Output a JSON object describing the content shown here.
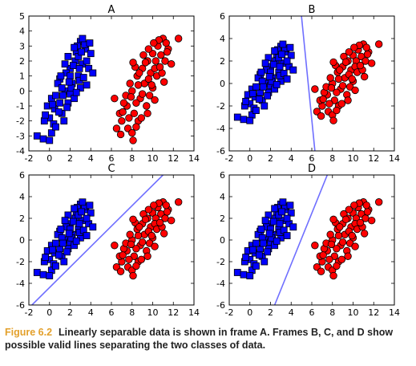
{
  "caption": {
    "label": "Figure 6.2",
    "text": "Linearly separable data is shown in frame A. Frames B, C, and D show possible valid lines separating the two classes of data.",
    "label_color": "#e3a02b"
  },
  "colors": {
    "class1": "#0000ff",
    "class2": "#ff0000",
    "line": "#6f6fff",
    "edge": "#000000"
  },
  "chart_data": [
    {
      "type": "scatter",
      "title": "A",
      "xlim": [
        -2,
        14
      ],
      "ylim": [
        -4,
        5
      ],
      "xticks": [
        "-2",
        "0",
        "2",
        "4",
        "6",
        "8",
        "10",
        "12",
        "14"
      ],
      "yticks": [
        "-4",
        "-3",
        "-2",
        "-1",
        "0",
        "1",
        "2",
        "3",
        "4",
        "5"
      ],
      "xtick_values": [
        -2,
        0,
        2,
        4,
        6,
        8,
        10,
        12,
        14
      ],
      "ytick_values": [
        -4,
        -3,
        -2,
        -1,
        0,
        1,
        2,
        3,
        4,
        5
      ],
      "line": null
    },
    {
      "type": "scatter",
      "title": "B",
      "xlim": [
        -2,
        14
      ],
      "ylim": [
        -6,
        6
      ],
      "xticks": [
        "-2",
        "0",
        "2",
        "4",
        "6",
        "8",
        "10",
        "12",
        "14"
      ],
      "yticks": [
        "-6",
        "-4",
        "-2",
        "0",
        "2",
        "4",
        "6"
      ],
      "xtick_values": [
        -2,
        0,
        2,
        4,
        6,
        8,
        10,
        12,
        14
      ],
      "ytick_values": [
        -6,
        -4,
        -2,
        0,
        2,
        4,
        6
      ],
      "line": [
        [
          5.0,
          6.0
        ],
        [
          6.3,
          -6.0
        ]
      ]
    },
    {
      "type": "scatter",
      "title": "C",
      "xlim": [
        -2,
        14
      ],
      "ylim": [
        -6,
        6
      ],
      "xticks": [
        "-2",
        "0",
        "2",
        "4",
        "6",
        "8",
        "10",
        "12",
        "14"
      ],
      "yticks": [
        "-6",
        "-4",
        "-2",
        "0",
        "2",
        "4",
        "6"
      ],
      "xtick_values": [
        -2,
        0,
        2,
        4,
        6,
        8,
        10,
        12,
        14
      ],
      "ytick_values": [
        -6,
        -4,
        -2,
        0,
        2,
        4,
        6
      ],
      "line": [
        [
          -1.7,
          -6.0
        ],
        [
          11.0,
          6.0
        ]
      ]
    },
    {
      "type": "scatter",
      "title": "D",
      "xlim": [
        -2,
        14
      ],
      "ylim": [
        -6,
        6
      ],
      "xticks": [
        "-2",
        "0",
        "2",
        "4",
        "6",
        "8",
        "10",
        "12",
        "14"
      ],
      "yticks": [
        "-6",
        "-4",
        "-2",
        "0",
        "2",
        "4",
        "6"
      ],
      "xtick_values": [
        -2,
        0,
        2,
        4,
        6,
        8,
        10,
        12,
        14
      ],
      "ytick_values": [
        -6,
        -4,
        -2,
        0,
        2,
        4,
        6
      ],
      "line": [
        [
          2.4,
          -6.0
        ],
        [
          7.5,
          6.0
        ]
      ]
    }
  ],
  "points": {
    "class1": [
      [
        0.2,
        -0.5
      ],
      [
        1.0,
        0.8
      ],
      [
        2.0,
        1.5
      ],
      [
        1.5,
        0.0
      ],
      [
        0.5,
        -1.2
      ],
      [
        2.5,
        2.0
      ],
      [
        3.0,
        3.3
      ],
      [
        3.5,
        2.8
      ],
      [
        2.8,
        1.0
      ],
      [
        1.8,
        -0.8
      ],
      [
        0.0,
        -1.8
      ],
      [
        -0.5,
        -2.0
      ],
      [
        1.2,
        -1.5
      ],
      [
        2.2,
        0.5
      ],
      [
        3.2,
        1.8
      ],
      [
        3.8,
        1.5
      ],
      [
        4.0,
        2.5
      ],
      [
        3.0,
        0.2
      ],
      [
        2.0,
        -0.2
      ],
      [
        1.0,
        -0.8
      ],
      [
        0.8,
        0.5
      ],
      [
        1.6,
        1.2
      ],
      [
        2.6,
        2.6
      ],
      [
        3.4,
        3.1
      ],
      [
        2.4,
        -0.5
      ],
      [
        1.4,
        -2.0
      ],
      [
        0.4,
        -2.2
      ],
      [
        -0.2,
        -1.0
      ],
      [
        -1.2,
        -3.0
      ],
      [
        -0.6,
        -3.2
      ],
      [
        0.2,
        -2.8
      ],
      [
        0.0,
        -3.3
      ],
      [
        1.8,
        2.3
      ],
      [
        2.8,
        2.3
      ],
      [
        3.6,
        2.0
      ],
      [
        4.2,
        1.2
      ],
      [
        2.0,
        1.0
      ],
      [
        1.2,
        0.2
      ],
      [
        0.6,
        -0.3
      ],
      [
        1.7,
        -1.1
      ],
      [
        2.9,
        0.7
      ],
      [
        3.3,
        0.9
      ],
      [
        2.3,
        1.7
      ],
      [
        1.5,
        1.8
      ],
      [
        2.7,
        3.0
      ],
      [
        3.9,
        3.2
      ],
      [
        3.1,
        2.6
      ],
      [
        0.9,
        -1.4
      ],
      [
        -0.4,
        -1.6
      ],
      [
        0.3,
        -0.9
      ],
      [
        2.1,
        0.2
      ],
      [
        1.1,
        1.0
      ],
      [
        2.4,
        2.9
      ],
      [
        3.6,
        0.4
      ],
      [
        1.9,
        0.6
      ],
      [
        2.9,
        1.5
      ],
      [
        1.3,
        -0.3
      ],
      [
        2.6,
        -0.1
      ],
      [
        0.6,
        -2.4
      ],
      [
        3.2,
        3.5
      ]
    ],
    "class2": [
      [
        8.0,
        0.0
      ],
      [
        8.5,
        1.0
      ],
      [
        9.0,
        1.5
      ],
      [
        9.5,
        2.0
      ],
      [
        10.0,
        2.5
      ],
      [
        10.5,
        3.0
      ],
      [
        11.0,
        3.5
      ],
      [
        7.5,
        -1.0
      ],
      [
        7.0,
        -2.0
      ],
      [
        6.5,
        -2.5
      ],
      [
        8.2,
        -1.5
      ],
      [
        8.8,
        -0.5
      ],
      [
        9.2,
        0.5
      ],
      [
        9.8,
        1.2
      ],
      [
        10.3,
        2.0
      ],
      [
        10.8,
        2.4
      ],
      [
        11.5,
        2.8
      ],
      [
        12.5,
        3.5
      ],
      [
        7.8,
        0.5
      ],
      [
        8.4,
        -0.8
      ],
      [
        9.0,
        -0.2
      ],
      [
        9.6,
        0.8
      ],
      [
        10.2,
        1.5
      ],
      [
        10.6,
        3.4
      ],
      [
        7.2,
        -0.8
      ],
      [
        6.8,
        -1.5
      ],
      [
        7.6,
        -2.5
      ],
      [
        8.0,
        -2.8
      ],
      [
        8.6,
        -2.0
      ],
      [
        9.4,
        -1.0
      ],
      [
        10.0,
        0.2
      ],
      [
        10.4,
        1.0
      ],
      [
        11.2,
        2.0
      ],
      [
        11.8,
        1.8
      ],
      [
        9.1,
        2.4
      ],
      [
        8.3,
        1.6
      ],
      [
        7.4,
        -0.3
      ],
      [
        6.3,
        -0.5
      ],
      [
        8.9,
        -1.8
      ],
      [
        9.7,
        -0.3
      ],
      [
        10.9,
        1.2
      ],
      [
        11.4,
        2.6
      ],
      [
        10.1,
        3.2
      ],
      [
        9.3,
        1.9
      ],
      [
        8.6,
        0.4
      ],
      [
        7.9,
        -0.4
      ],
      [
        7.1,
        -1.4
      ],
      [
        8.1,
        -3.3
      ],
      [
        6.9,
        -2.9
      ],
      [
        9.9,
        0.4
      ],
      [
        10.7,
        1.6
      ],
      [
        11.3,
        3.2
      ],
      [
        9.6,
        2.8
      ],
      [
        8.7,
        1.2
      ],
      [
        7.7,
        -1.8
      ],
      [
        8.4,
        -2.4
      ],
      [
        9.5,
        -1.5
      ],
      [
        10.2,
        -0.6
      ],
      [
        11.1,
        0.6
      ],
      [
        8.1,
        1.9
      ]
    ]
  }
}
